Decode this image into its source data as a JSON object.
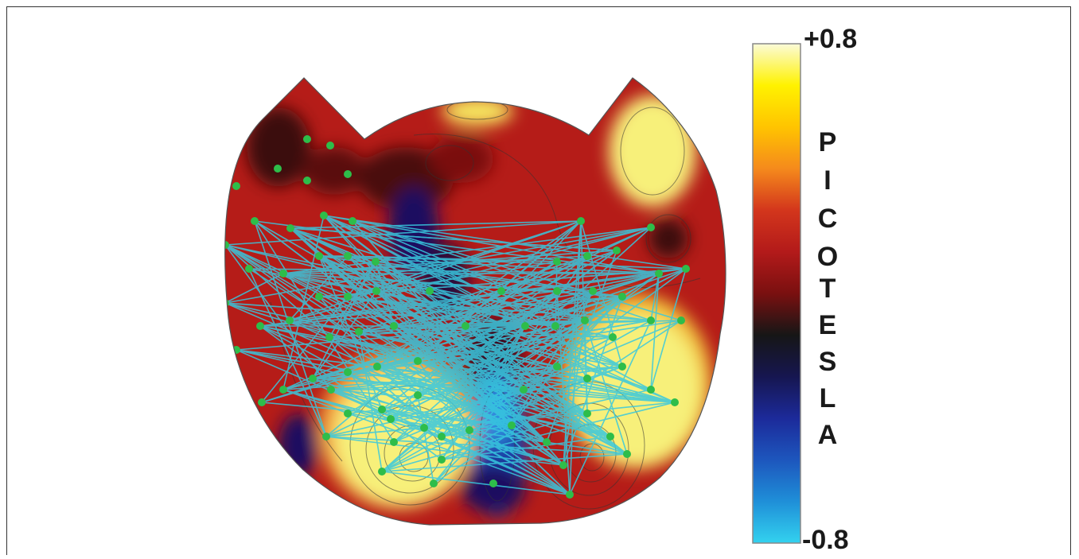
{
  "colorbar": {
    "max_label": "+0.8",
    "min_label": "-0.8",
    "unit_letters": [
      "P",
      "I",
      "C",
      "O",
      "T",
      "E",
      "S",
      "L",
      "A"
    ],
    "gradient_top_to_bottom": [
      "#fbfbd8",
      "#fff200",
      "#ffc400",
      "#f58a1c",
      "#d3361c",
      "#b31a1a",
      "#7a1010",
      "#161616",
      "#161650",
      "#1c2a9a",
      "#1d56bd",
      "#1f8fd8",
      "#33d2ef"
    ]
  },
  "map_palette": {
    "red": "#b51c18",
    "dark_red": "#4a0a0a",
    "yellow": "#f7f07a",
    "pale_yellow": "#fbf7b0",
    "orange": "#f2a23a",
    "blue": "#1d3fa8",
    "dark_blue": "#1a1060",
    "cyan_line": "#38c8df",
    "sensor_green": "#2ebd4a"
  }
}
